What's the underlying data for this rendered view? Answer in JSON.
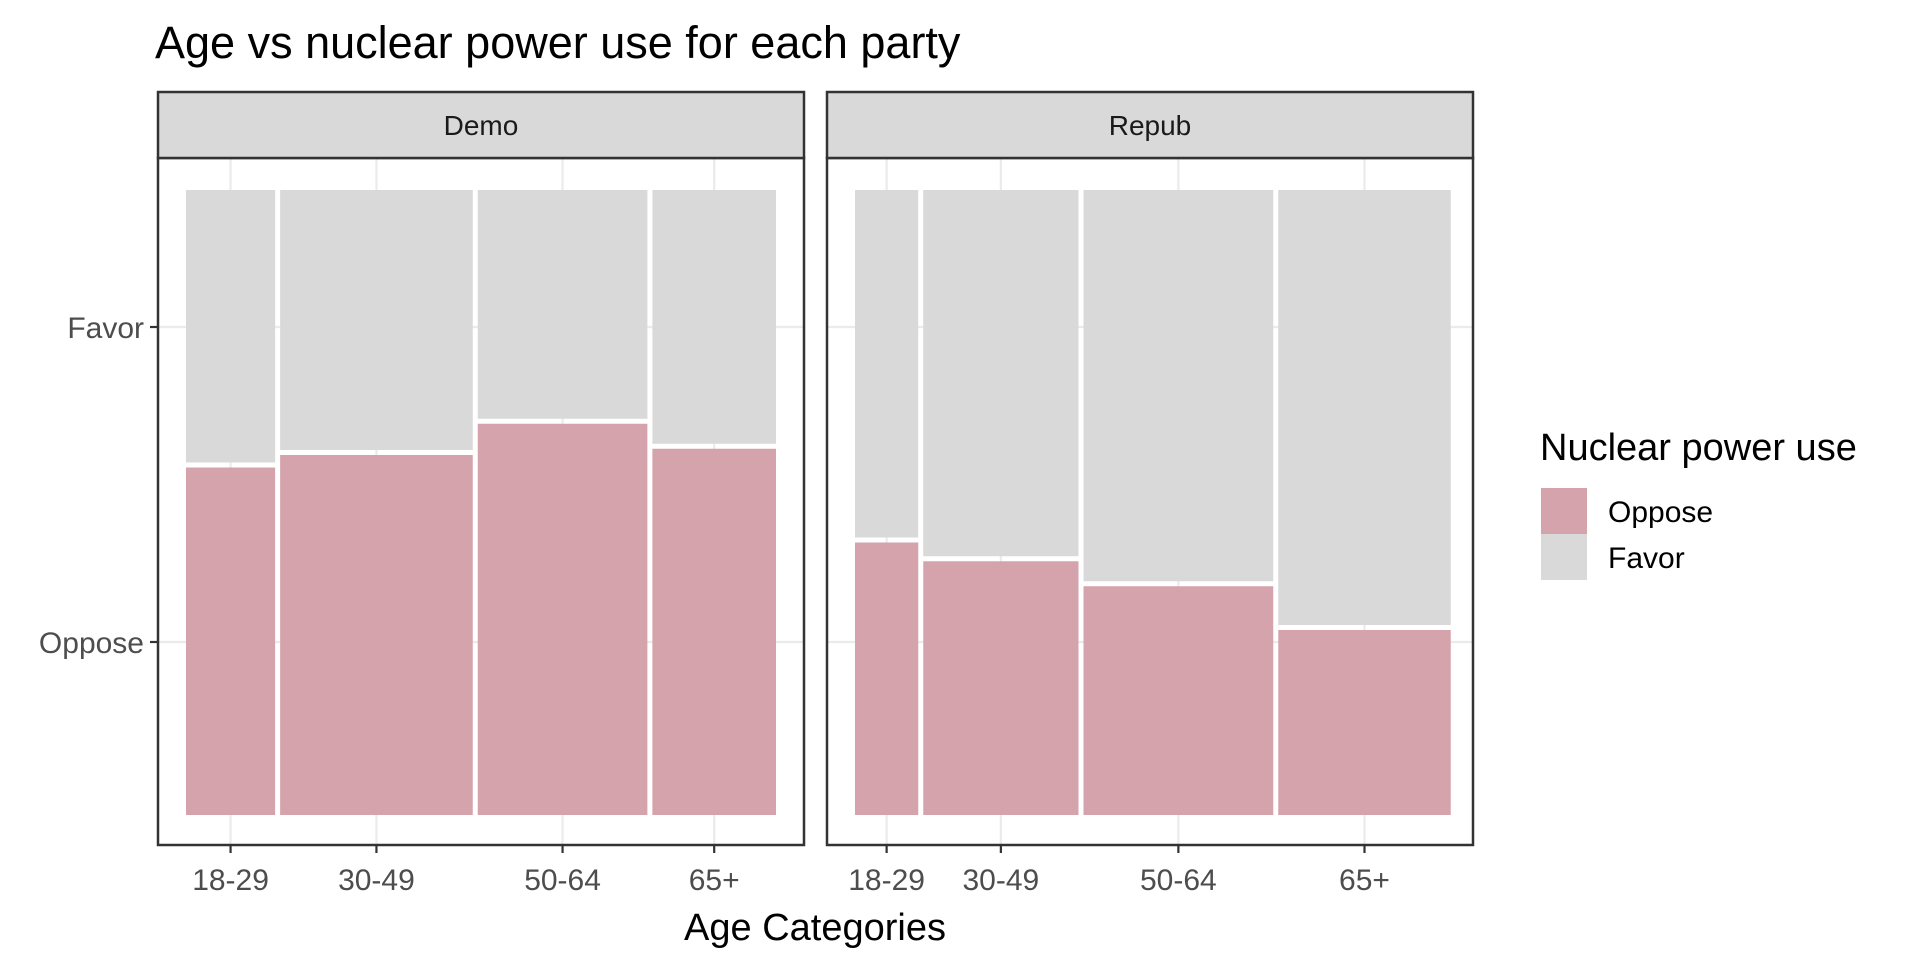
{
  "chart_data": {
    "type": "mosaic",
    "title": "Age vs nuclear power use for each party",
    "xlabel": "Age Categories",
    "ylabel": "",
    "y_categories": [
      "Oppose",
      "Favor"
    ],
    "x_categories": [
      "18-29",
      "30-49",
      "50-64",
      "65+"
    ],
    "legend": {
      "title": "Nuclear power use",
      "placement": "right",
      "items": [
        {
          "label": "Oppose",
          "color": "#d5a3ab"
        },
        {
          "label": "Favor",
          "color": "#d9d9d9"
        }
      ]
    },
    "colors": {
      "Oppose": "#d5a3ab",
      "Favor": "#d9d9d9",
      "panel_border": "#333333",
      "strip_fill": "#d9d9d9",
      "grid": "#ebebeb"
    },
    "grid": true,
    "facets": [
      {
        "label": "Demo",
        "age_share": [
          0.155,
          0.335,
          0.295,
          0.215
        ],
        "oppose_share": [
          0.56,
          0.58,
          0.63,
          0.59
        ]
      },
      {
        "label": "Repub",
        "age_share": [
          0.11,
          0.27,
          0.33,
          0.3
        ],
        "oppose_share": [
          0.44,
          0.41,
          0.37,
          0.3
        ]
      }
    ]
  }
}
